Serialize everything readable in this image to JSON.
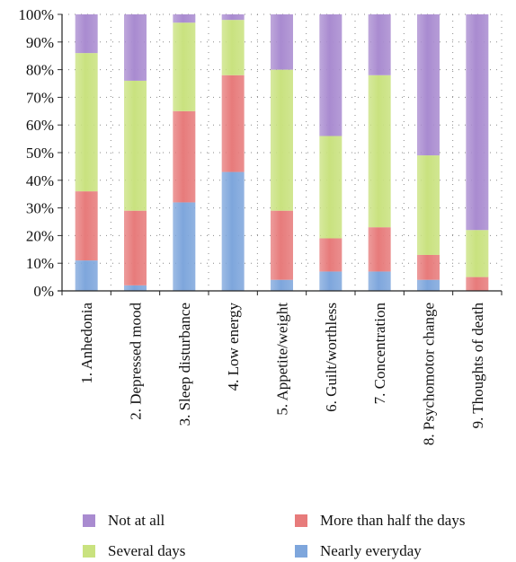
{
  "chart_data": {
    "type": "bar",
    "stacked": true,
    "categories": [
      "1. Anhedonia",
      "2. Depressed mood",
      "3. Sleep disturbance",
      "4. Low energy",
      "5. Appetite/weight",
      "6. Guilt/worthless",
      "7. Concentration",
      "8. Psychomotor change",
      "9. Thoughts of death"
    ],
    "series": [
      {
        "name": "Nearly everyday",
        "color": "#7ea6dc",
        "values": [
          11,
          2,
          32,
          43,
          4,
          7,
          7,
          4,
          0
        ]
      },
      {
        "name": "More than half the days",
        "color": "#e77b7b",
        "values": [
          25,
          27,
          33,
          35,
          25,
          12,
          16,
          9,
          5
        ]
      },
      {
        "name": "Several days",
        "color": "#c9e27f",
        "values": [
          50,
          47,
          32,
          20,
          51,
          37,
          55,
          36,
          17
        ]
      },
      {
        "name": "Not at all",
        "color": "#a98bd0",
        "values": [
          14,
          24,
          3,
          2,
          20,
          44,
          22,
          51,
          78
        ]
      }
    ],
    "y_ticks": [
      "0%",
      "10%",
      "20%",
      "30%",
      "40%",
      "50%",
      "60%",
      "70%",
      "80%",
      "90%",
      "100%"
    ],
    "ylim": [
      0,
      100
    ],
    "grid": "dotted",
    "legend_position": "bottom"
  },
  "legend": [
    {
      "label": "Not at all",
      "color": "#a98bd0"
    },
    {
      "label": "More than half the days",
      "color": "#e77b7b"
    },
    {
      "label": "Several days",
      "color": "#c9e27f"
    },
    {
      "label": "Nearly everyday",
      "color": "#7ea6dc"
    }
  ]
}
